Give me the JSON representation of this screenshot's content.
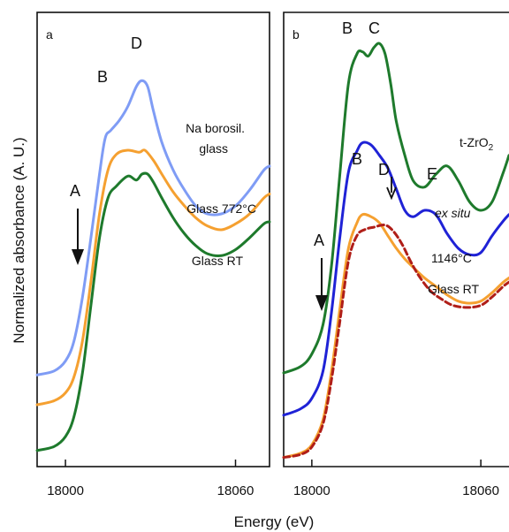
{
  "ylabel": "Normalized absorbance (A. U.)",
  "xlabel": "Energy (eV)",
  "colors": {
    "light_blue": "#7f9cf5",
    "orange": "#f5a030",
    "green": "#1e7a2c",
    "blue": "#1f22d6",
    "dark_red": "#b01e18"
  },
  "chart_data": [
    {
      "type": "line",
      "panel_label": "a",
      "xlim": [
        17990,
        18072
      ],
      "ylim": [
        0,
        10
      ],
      "xticks": [
        18000,
        18060
      ],
      "xtick_labels": [
        "18000",
        "18060"
      ],
      "grid": false,
      "series": [
        {
          "name": "Na borosil. glass",
          "color": "#7f9cf5",
          "x": [
            17990,
            17996,
            18000,
            18003,
            18006,
            18009,
            18012,
            18014,
            18016,
            18019,
            18022,
            18025,
            18027,
            18029,
            18031,
            18034,
            18038,
            18042,
            18046,
            18050,
            18055,
            18060,
            18065,
            18070,
            18072
          ],
          "y": [
            1.95,
            2.05,
            2.3,
            2.8,
            3.9,
            5.4,
            7.0,
            7.9,
            8.1,
            8.35,
            8.7,
            9.2,
            9.35,
            9.2,
            8.6,
            7.8,
            7.1,
            6.6,
            6.2,
            6.0,
            6.0,
            6.2,
            6.6,
            7.1,
            7.2
          ]
        },
        {
          "name": "Glass 772°C",
          "color": "#f5a030",
          "x": [
            17990,
            17996,
            18000,
            18003,
            18006,
            18009,
            18012,
            18015,
            18018,
            18022,
            18026,
            18028,
            18031,
            18034,
            18038,
            18042,
            18046,
            18050,
            18055,
            18060,
            18065,
            18070,
            18072
          ],
          "y": [
            1.2,
            1.3,
            1.5,
            1.9,
            2.8,
            4.3,
            6.0,
            7.1,
            7.5,
            7.6,
            7.55,
            7.6,
            7.35,
            7.0,
            6.55,
            6.2,
            5.9,
            5.7,
            5.6,
            5.75,
            6.0,
            6.4,
            6.5
          ]
        },
        {
          "name": "Glass RT",
          "color": "#1e7a2c",
          "x": [
            17990,
            17996,
            18000,
            18003,
            18006,
            18009,
            18012,
            18015,
            18018,
            18022,
            18025,
            18027,
            18029,
            18031,
            18034,
            18038,
            18042,
            18046,
            18050,
            18055,
            18060,
            18065,
            18070,
            18072
          ],
          "y": [
            0.05,
            0.15,
            0.4,
            0.9,
            2.0,
            3.7,
            5.4,
            6.4,
            6.7,
            6.95,
            6.85,
            7.0,
            7.0,
            6.8,
            6.4,
            5.9,
            5.5,
            5.2,
            5.0,
            4.95,
            5.1,
            5.4,
            5.75,
            5.8
          ]
        }
      ],
      "annotations": [
        "A",
        "B",
        "D"
      ],
      "series_labels": {
        "na": [
          "Na borosil.",
          "glass"
        ],
        "g772": "Glass 772°C",
        "grt": "Glass RT"
      }
    },
    {
      "type": "line",
      "panel_label": "b",
      "xlim": [
        17990,
        18070
      ],
      "ylim": [
        0,
        10
      ],
      "xticks": [
        18000,
        18060
      ],
      "xtick_labels": [
        "18000",
        "18060"
      ],
      "grid": false,
      "series": [
        {
          "name": "t-ZrO2",
          "color": "#1e7a2c",
          "x": [
            17990,
            17996,
            18000,
            18004,
            18007,
            18010,
            18013,
            18016,
            18018,
            18020,
            18022,
            18024,
            18026,
            18028,
            18030,
            18033,
            18036,
            18040,
            18044,
            18048,
            18052,
            18056,
            18060,
            18064,
            18068,
            18070
          ],
          "y": [
            2.05,
            2.2,
            2.5,
            3.2,
            4.6,
            6.8,
            8.9,
            9.6,
            9.65,
            9.55,
            9.75,
            9.85,
            9.6,
            8.9,
            8.0,
            7.2,
            6.6,
            6.45,
            6.75,
            6.95,
            6.6,
            6.1,
            5.9,
            6.1,
            6.8,
            7.2
          ]
        },
        {
          "name": "ex situ",
          "color": "#1f22d6",
          "x": [
            17990,
            17996,
            18000,
            18004,
            18007,
            18010,
            18013,
            18016,
            18018,
            18021,
            18024,
            18027,
            18030,
            18033,
            18036,
            18040,
            18044,
            18048,
            18052,
            18056,
            18060,
            18064,
            18068,
            18070
          ],
          "y": [
            1.05,
            1.2,
            1.45,
            2.1,
            3.5,
            5.3,
            6.8,
            7.3,
            7.5,
            7.45,
            7.2,
            6.9,
            6.4,
            5.9,
            5.75,
            5.9,
            5.8,
            5.35,
            5.0,
            4.85,
            4.9,
            5.3,
            5.65,
            5.8
          ]
        },
        {
          "name": "1146°C",
          "color": "#f5a030",
          "x": [
            17990,
            17996,
            18000,
            18004,
            18007,
            18010,
            18013,
            18016,
            18018,
            18021,
            18024,
            18027,
            18030,
            18033,
            18036,
            18040,
            18044,
            18048,
            18052,
            18056,
            18060,
            18064,
            18068,
            18070
          ],
          "y": [
            0.05,
            0.15,
            0.35,
            0.95,
            2.1,
            3.6,
            5.0,
            5.6,
            5.8,
            5.75,
            5.6,
            5.3,
            5.0,
            4.75,
            4.55,
            4.3,
            4.1,
            3.9,
            3.75,
            3.7,
            3.75,
            3.95,
            4.2,
            4.3
          ]
        },
        {
          "name": "Glass RT",
          "color": "#b01e18",
          "dashed": true,
          "x": [
            17990,
            17996,
            18000,
            18004,
            18007,
            18010,
            18013,
            18016,
            18019,
            18022,
            18026,
            18029,
            18032,
            18035,
            18038,
            18042,
            18046,
            18050,
            18055,
            18060,
            18064,
            18068,
            18070
          ],
          "y": [
            0.05,
            0.12,
            0.3,
            0.85,
            1.9,
            3.3,
            4.7,
            5.3,
            5.45,
            5.5,
            5.55,
            5.4,
            5.1,
            4.7,
            4.35,
            4.0,
            3.8,
            3.65,
            3.6,
            3.65,
            3.85,
            4.1,
            4.2
          ]
        }
      ],
      "annotations": [
        "A",
        "B",
        "C",
        "B",
        "D",
        "E"
      ],
      "series_labels": {
        "tzro2_main": "t-ZrO",
        "tzro2_sub": "2",
        "exsitu": "ex situ",
        "t1146": "1146°C",
        "grt": "Glass RT"
      }
    }
  ]
}
